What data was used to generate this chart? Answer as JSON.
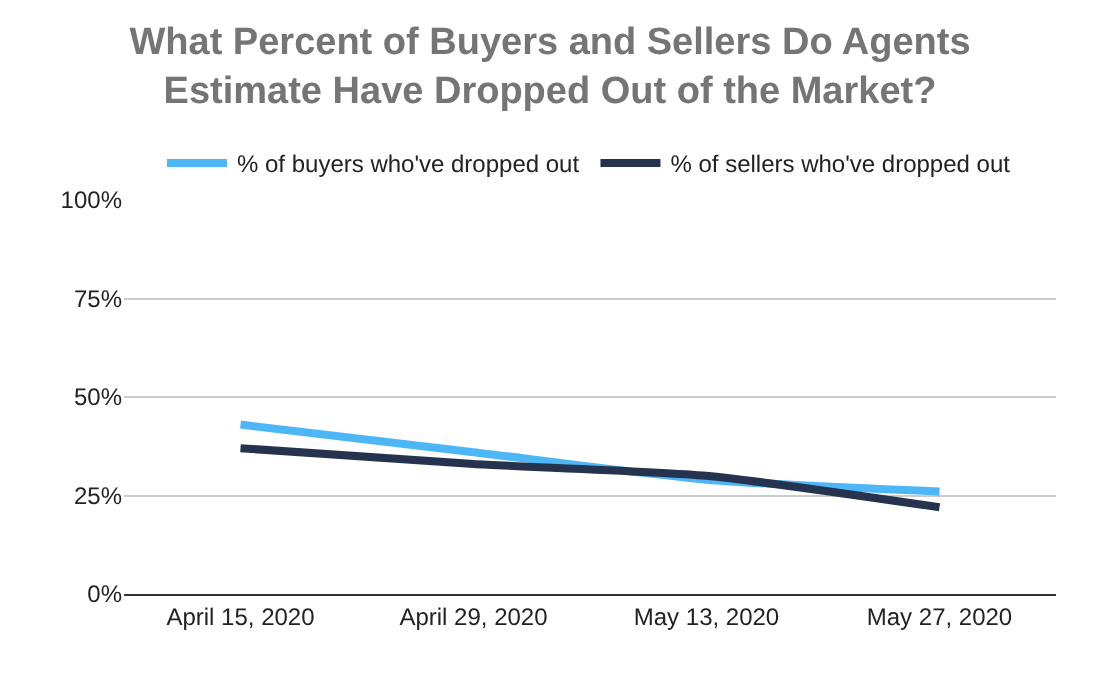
{
  "chart_data": {
    "type": "line",
    "title": "What Percent of Buyers and Sellers Do Agents Estimate Have Dropped Out of the Market?",
    "categories": [
      "April 15, 2020",
      "April 29, 2020",
      "May 13, 2020",
      "May 27, 2020"
    ],
    "series": [
      {
        "name": "% of buyers who've dropped out",
        "color": "#4db6f7",
        "values": [
          43,
          36,
          29,
          26
        ]
      },
      {
        "name": "% of sellers who've dropped out",
        "color": "#26334f",
        "values": [
          37,
          33,
          30,
          22
        ]
      }
    ],
    "ylim": [
      0,
      100
    ],
    "yticks": [
      {
        "value": 0,
        "label": "0%"
      },
      {
        "value": 25,
        "label": "25%"
      },
      {
        "value": 50,
        "label": "50%"
      },
      {
        "value": 75,
        "label": "75%"
      },
      {
        "value": 100,
        "label": "100%"
      }
    ],
    "grid": "y",
    "legend": "top",
    "marker": "none",
    "line_style": "solid"
  }
}
